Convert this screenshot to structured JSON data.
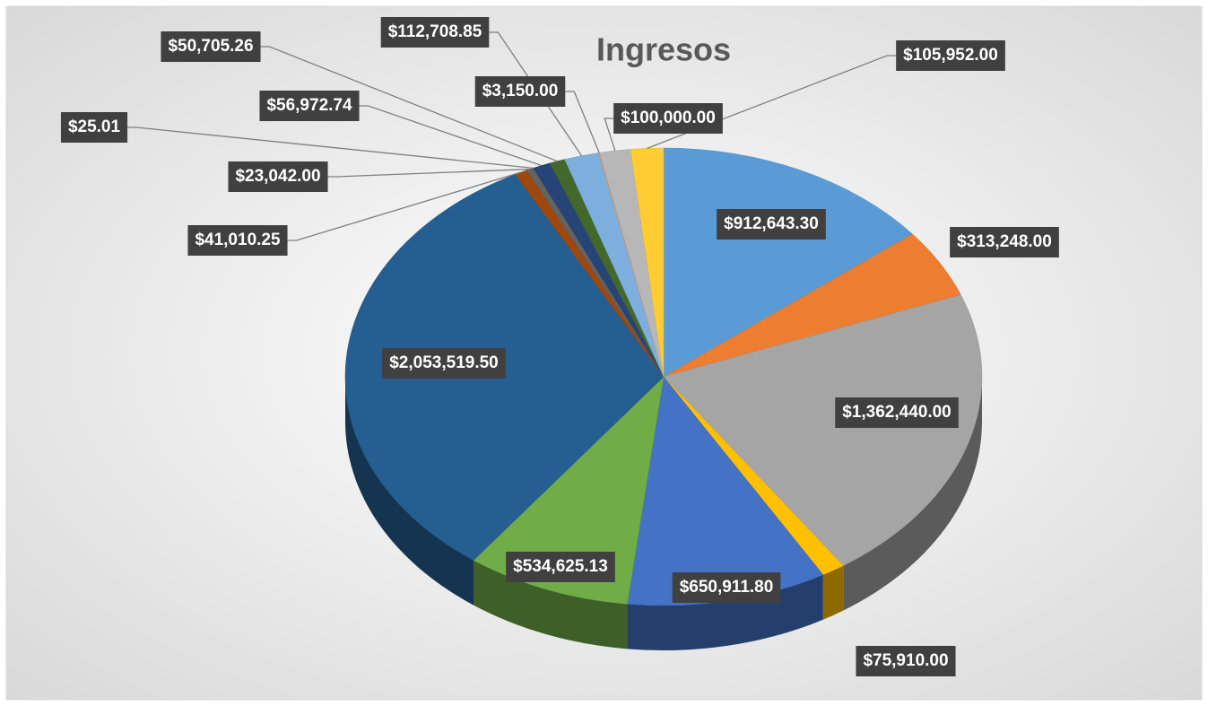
{
  "chart_data": {
    "type": "pie",
    "title": "Ingresos",
    "values": [
      912643.3,
      313248.0,
      1362440.0,
      75910.0,
      650911.8,
      534625.13,
      2053519.5,
      41010.25,
      23042.0,
      25.01,
      56972.74,
      50705.26,
      112708.85,
      3150.0,
      100000.0,
      105952.0
    ],
    "value_labels": [
      "$912,643.30",
      "$313,248.00",
      "$1,362,440.00",
      "$75,910.00",
      "$650,911.80",
      "$534,625.13",
      "$2,053,519.50",
      "$41,010.25",
      "$23,042.00",
      "$25.01",
      "$56,972.74",
      "$50,705.26",
      "$112,708.85",
      "$3,150.00",
      "$100,000.00",
      "$105,952.00"
    ],
    "colors": [
      "#5b9bd5",
      "#ed7d31",
      "#a5a5a5",
      "#ffc000",
      "#4472c4",
      "#70ad47",
      "#255e91",
      "#9e480e",
      "#636363",
      "#997300",
      "#264478",
      "#43682b",
      "#7cafdd",
      "#f1975a",
      "#b7b7b7",
      "#ffcd33"
    ]
  }
}
